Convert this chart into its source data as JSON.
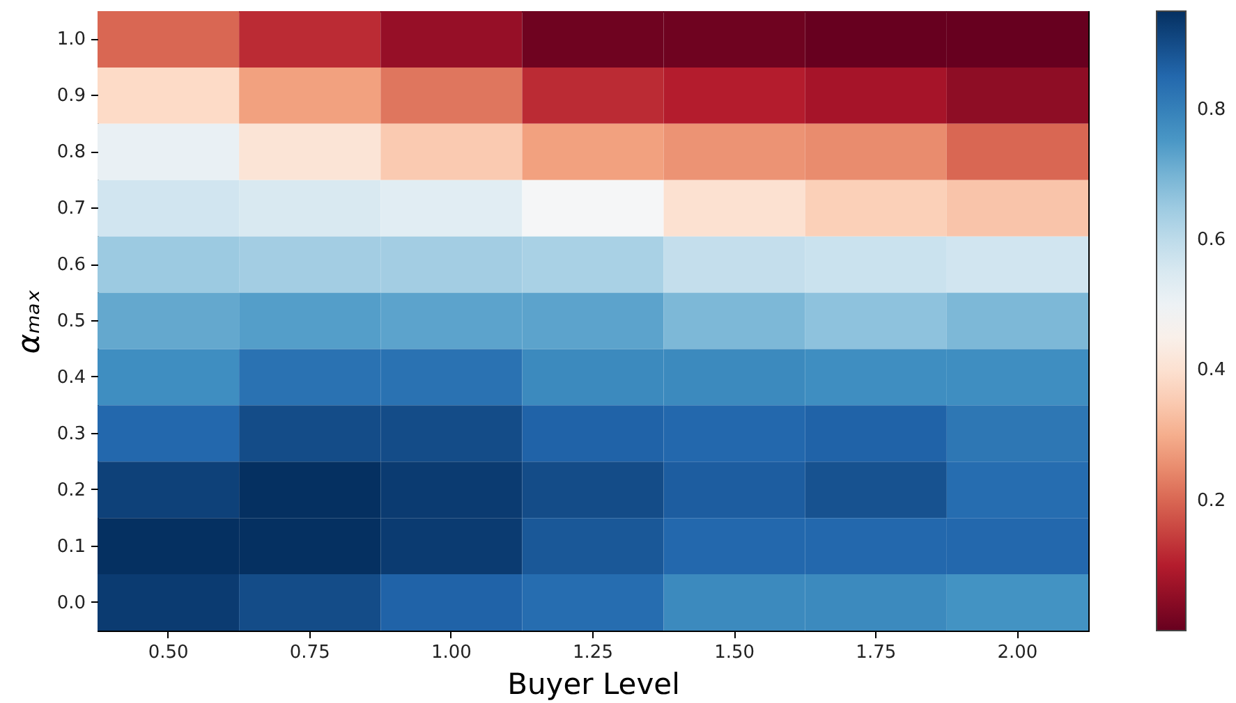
{
  "chart_data": {
    "type": "heatmap",
    "xlabel": "Buyer Level",
    "ylabel": "αₘₐₓ",
    "categories": [
      "0.50",
      "0.75",
      "1.00",
      "1.25",
      "1.50",
      "1.75",
      "2.00"
    ],
    "y_categories": [
      "1.0",
      "0.9",
      "0.8",
      "0.7",
      "0.6",
      "0.5",
      "0.4",
      "0.3",
      "0.2",
      "0.1",
      "0.0"
    ],
    "cells": [
      [
        0.2,
        0.12,
        0.06,
        0.01,
        0.01,
        0.0,
        0.0
      ],
      [
        0.38,
        0.28,
        0.22,
        0.12,
        0.1,
        0.08,
        0.05
      ],
      [
        0.51,
        0.41,
        0.35,
        0.28,
        0.26,
        0.25,
        0.2
      ],
      [
        0.57,
        0.55,
        0.53,
        0.48,
        0.4,
        0.36,
        0.34
      ],
      [
        0.65,
        0.64,
        0.64,
        0.63,
        0.59,
        0.58,
        0.57
      ],
      [
        0.72,
        0.74,
        0.73,
        0.73,
        0.69,
        0.67,
        0.69
      ],
      [
        0.77,
        0.83,
        0.83,
        0.78,
        0.78,
        0.77,
        0.77
      ],
      [
        0.85,
        0.9,
        0.9,
        0.86,
        0.85,
        0.86,
        0.82
      ],
      [
        0.92,
        0.95,
        0.93,
        0.9,
        0.87,
        0.89,
        0.84
      ],
      [
        0.95,
        0.95,
        0.93,
        0.88,
        0.85,
        0.85,
        0.85
      ],
      [
        0.93,
        0.9,
        0.86,
        0.84,
        0.78,
        0.78,
        0.76
      ]
    ],
    "clim": [
      0.0,
      0.95
    ],
    "cticks": [
      0.2,
      0.4,
      0.6,
      0.8
    ],
    "grid": false
  }
}
